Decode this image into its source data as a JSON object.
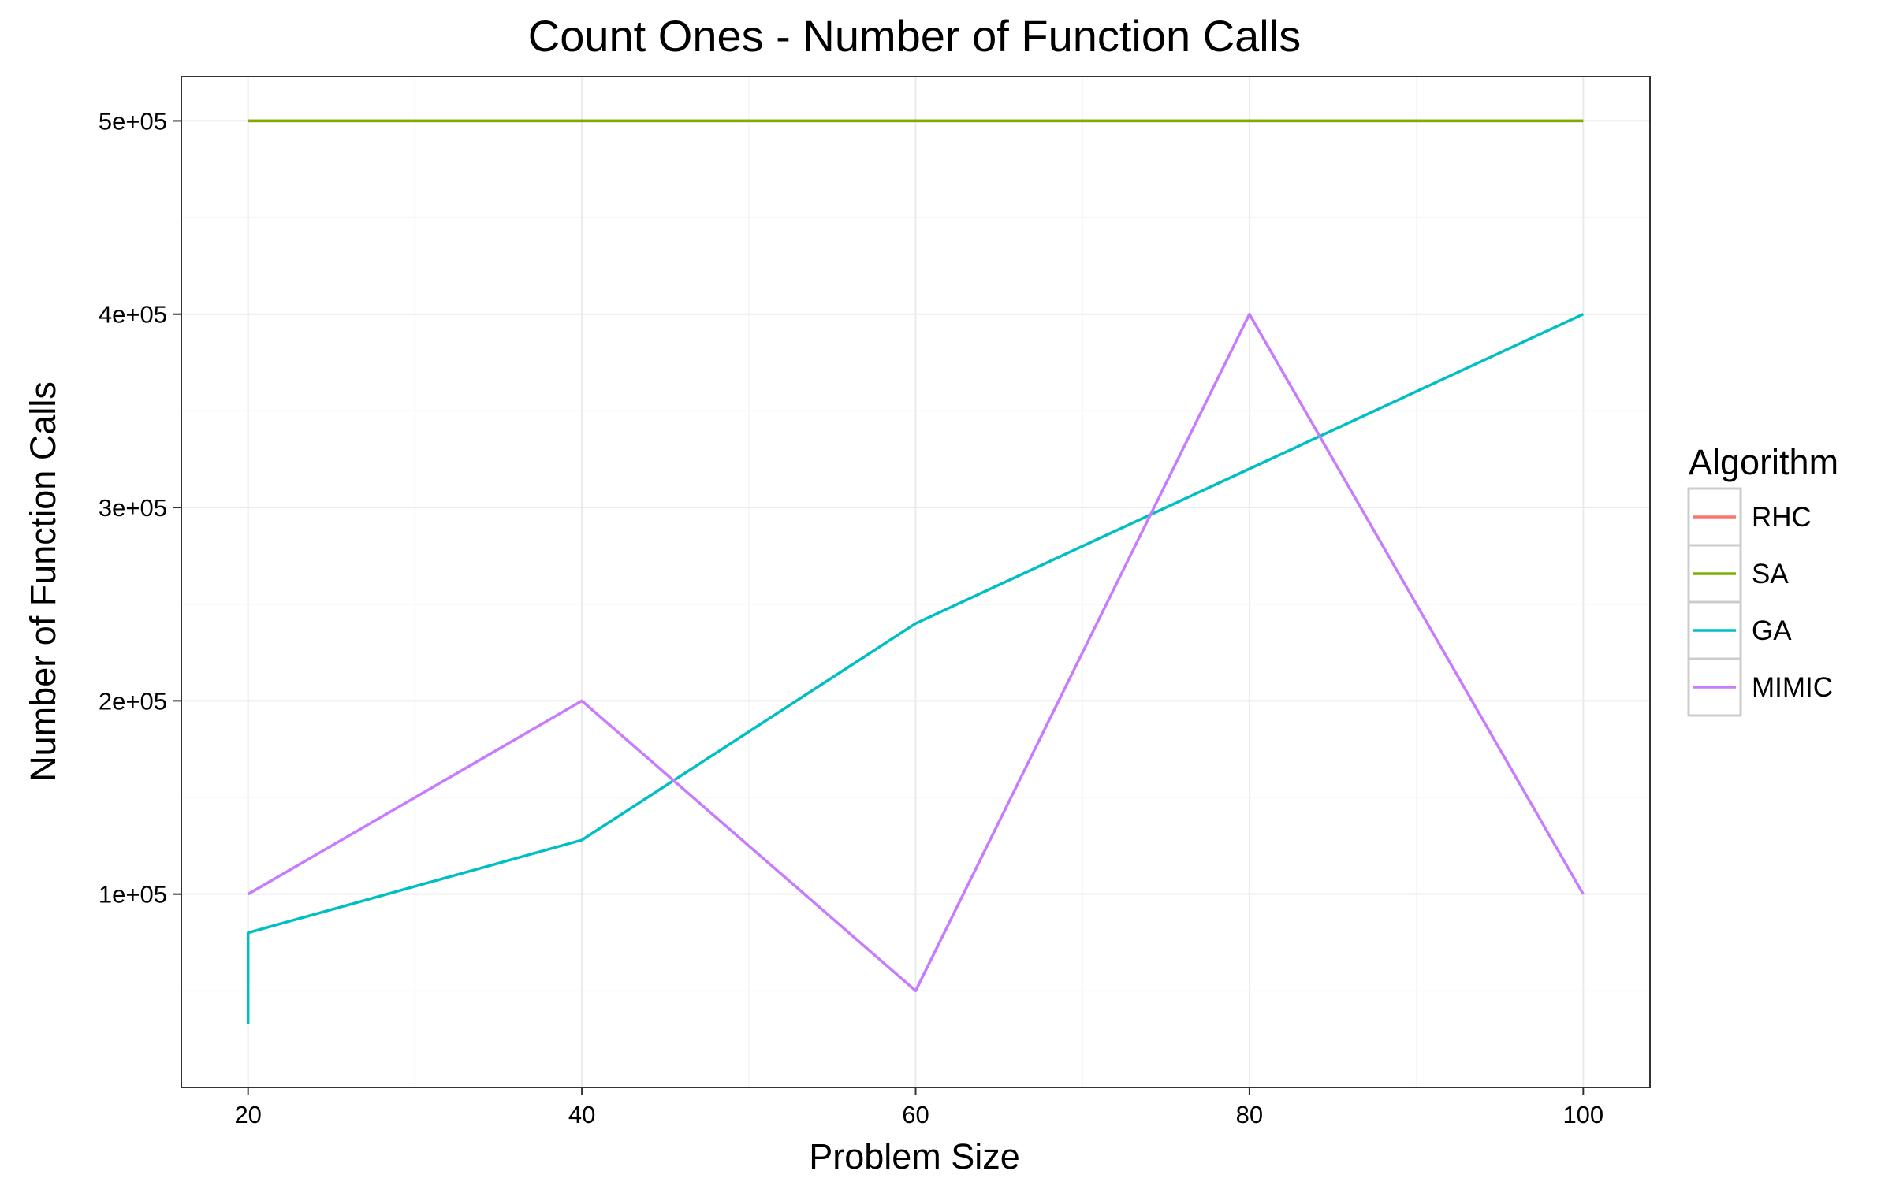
{
  "chart_data": {
    "type": "line",
    "title": "Count Ones - Number of Function Calls",
    "xlabel": "Problem Size",
    "ylabel": "Number of Function Calls",
    "xlim": [
      16,
      104
    ],
    "ylim": [
      0,
      523000
    ],
    "x_ticks": [
      20,
      40,
      60,
      80,
      100
    ],
    "x_tick_labels": [
      "20",
      "40",
      "60",
      "80",
      "100"
    ],
    "x_minor_ticks": [
      30,
      50,
      70,
      90
    ],
    "y_ticks": [
      100000,
      200000,
      300000,
      400000,
      500000
    ],
    "y_tick_labels": [
      "1e+05",
      "2e+05",
      "3e+05",
      "4e+05",
      "5e+05"
    ],
    "y_minor_ticks": [
      50000,
      150000,
      250000,
      350000,
      450000
    ],
    "grid": true,
    "legend": {
      "title": "Algorithm",
      "position": "right"
    },
    "series": [
      {
        "name": "RHC",
        "color": "#F8766D",
        "points": [
          [
            20,
            500000
          ],
          [
            40,
            500000
          ],
          [
            60,
            500000
          ],
          [
            80,
            500000
          ],
          [
            100,
            500000
          ]
        ]
      },
      {
        "name": "SA",
        "color": "#7CAE00",
        "points": [
          [
            20,
            500000
          ],
          [
            40,
            500000
          ],
          [
            60,
            500000
          ],
          [
            80,
            500000
          ],
          [
            100,
            500000
          ]
        ]
      },
      {
        "name": "GA",
        "color": "#00BFC4",
        "points": [
          [
            20,
            33000
          ],
          [
            20,
            80000
          ],
          [
            40,
            128000
          ],
          [
            60,
            240000
          ],
          [
            80,
            320000
          ],
          [
            100,
            400000
          ]
        ]
      },
      {
        "name": "MIMIC",
        "color": "#C77CFF",
        "points": [
          [
            20,
            100000
          ],
          [
            40,
            200000
          ],
          [
            60,
            50000
          ],
          [
            80,
            400000
          ],
          [
            100,
            100000
          ]
        ]
      }
    ]
  }
}
